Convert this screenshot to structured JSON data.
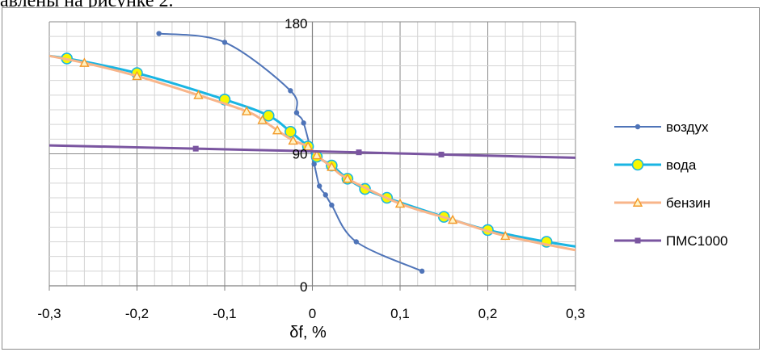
{
  "document": {
    "text_fragment": "авлены на рисунке 2."
  },
  "chart_data": {
    "type": "line",
    "xlabel": "δf, %",
    "ylabel": "",
    "xlim": [
      -0.3,
      0.3
    ],
    "ylim": [
      0,
      180
    ],
    "x_ticks": [
      -0.3,
      -0.2,
      -0.1,
      0,
      0.1,
      0.2,
      0.3
    ],
    "x_tick_labels": [
      "-0,3",
      "-0,2",
      "-0,1",
      "0",
      "0,1",
      "0,2",
      "0,3"
    ],
    "y_tick_labels": [
      {
        "value": 180,
        "label": "180"
      },
      {
        "value": 90,
        "label": "90"
      },
      {
        "value": 0,
        "label": "0"
      }
    ],
    "grid": true,
    "legend_position": "right",
    "series": [
      {
        "name": "воздух",
        "color": "#4f74b8",
        "marker": "dot",
        "line_width": 2,
        "x": [
          -0.175,
          -0.1,
          -0.025,
          -0.018,
          -0.01,
          0.002,
          0.008,
          0.015,
          0.022,
          0.05,
          0.125
        ],
        "y": [
          172,
          166,
          133,
          118,
          111,
          83,
          68,
          62,
          55,
          30,
          10
        ]
      },
      {
        "name": "вода",
        "color": "#19b5e3",
        "marker": "circle",
        "marker_fill": "#f7f700",
        "line_width": 3,
        "x": [
          -0.32,
          -0.28,
          -0.2,
          -0.1,
          -0.05,
          -0.025,
          -0.005,
          0.005,
          0.022,
          0.04,
          0.06,
          0.085,
          0.15,
          0.2,
          0.267,
          0.32
        ],
        "y": [
          158,
          155,
          145,
          127,
          116,
          105,
          95,
          88,
          82,
          73,
          66,
          60,
          47,
          38,
          30,
          25
        ]
      },
      {
        "name": "бензин",
        "color": "#f8b58a",
        "marker": "triangle",
        "marker_color": "#f39a2a",
        "line_width": 3,
        "x": [
          -0.32,
          -0.26,
          -0.2,
          -0.13,
          -0.075,
          -0.057,
          -0.04,
          -0.022,
          -0.005,
          0.005,
          0.022,
          0.04,
          0.1,
          0.16,
          0.22,
          0.32
        ],
        "y": [
          159,
          152,
          143,
          130,
          119,
          113,
          106,
          99,
          95,
          89,
          81,
          73,
          56,
          45,
          34,
          22
        ]
      },
      {
        "name": "ПМС1000",
        "color": "#7a55a0",
        "marker": "square",
        "line_width": 3,
        "x": [
          -0.32,
          -0.133,
          0.053,
          0.147,
          0.32
        ],
        "y": [
          96,
          93.5,
          91,
          89.5,
          87
        ]
      }
    ]
  }
}
